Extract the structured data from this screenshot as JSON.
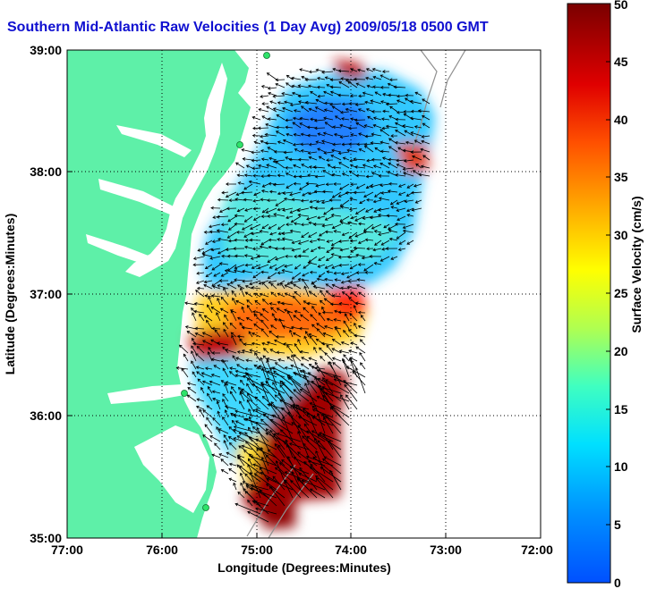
{
  "title": "Southern Mid-Atlantic Raw Velocities (1 Day Avg) 2009/05/18 0500 GMT",
  "x_axis": {
    "label": "Longitude (Degrees:Minutes)",
    "ticks": [
      "77:00",
      "76:00",
      "75:00",
      "74:00",
      "73:00",
      "72:00"
    ]
  },
  "y_axis": {
    "label": "Latitude (Degrees:Minutes)",
    "ticks": [
      "39:00",
      "38:00",
      "37:00",
      "36:00",
      "35:00"
    ]
  },
  "colorbar": {
    "label": "Surface Velocity (cm/s)",
    "ticks": [
      "50",
      "45",
      "40",
      "35",
      "30",
      "25",
      "20",
      "15",
      "10",
      "5",
      "0"
    ],
    "min": 0,
    "max": 50
  },
  "colors": {
    "land": "#5ef0a8",
    "title": "#1010d0"
  }
}
